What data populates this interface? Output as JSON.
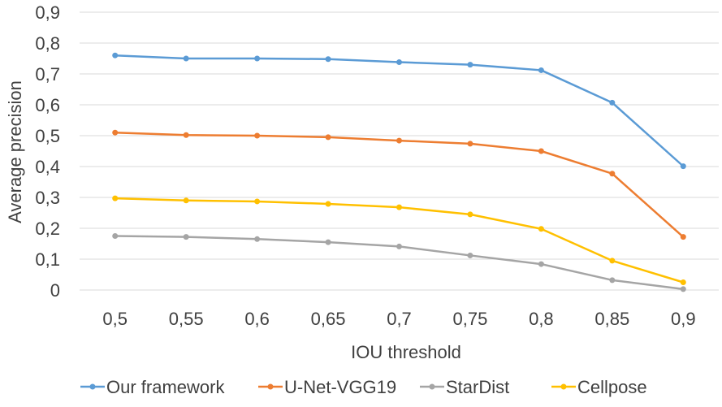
{
  "chart_data": {
    "type": "line",
    "title": "",
    "xlabel": "IOU threshold",
    "ylabel": "Average precision",
    "categories": [
      "0,5",
      "0,55",
      "0,6",
      "0,65",
      "0,7",
      "0,75",
      "0,8",
      "0,85",
      "0,9"
    ],
    "ylim": [
      0,
      0.9
    ],
    "yticks": [
      0,
      0.1,
      0.2,
      0.3,
      0.4,
      0.5,
      0.6,
      0.7,
      0.8,
      0.9
    ],
    "ytick_labels": [
      "0",
      "0,1",
      "0,2",
      "0,3",
      "0,4",
      "0,5",
      "0,6",
      "0,7",
      "0,8",
      "0,9"
    ],
    "grid": "horizontal",
    "legend_position": "bottom",
    "series": [
      {
        "name": "Our framework",
        "color": "#5B9BD5",
        "values": [
          0.76,
          0.75,
          0.75,
          0.748,
          0.738,
          0.73,
          0.712,
          0.607,
          0.401
        ]
      },
      {
        "name": "U-Net-VGG19",
        "color": "#ED7D31",
        "values": [
          0.51,
          0.502,
          0.5,
          0.495,
          0.484,
          0.474,
          0.45,
          0.377,
          0.172
        ]
      },
      {
        "name": "StarDist",
        "color": "#A5A5A5",
        "values": [
          0.175,
          0.172,
          0.165,
          0.155,
          0.141,
          0.112,
          0.084,
          0.032,
          0.003
        ]
      },
      {
        "name": "Cellpose",
        "color": "#FFC000",
        "values": [
          0.297,
          0.29,
          0.287,
          0.279,
          0.268,
          0.245,
          0.198,
          0.095,
          0.025
        ]
      }
    ]
  }
}
